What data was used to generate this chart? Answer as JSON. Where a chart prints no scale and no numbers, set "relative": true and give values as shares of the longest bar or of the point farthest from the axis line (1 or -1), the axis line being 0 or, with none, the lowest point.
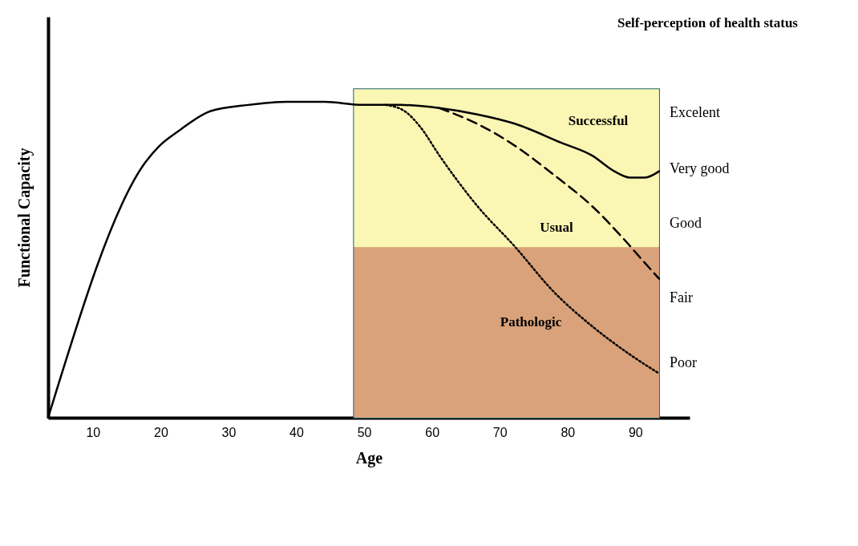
{
  "chart_data": {
    "type": "line",
    "relative": true,
    "xlabel": "Age",
    "ylabel": "Functional Capacity",
    "xlim": [
      3.4,
      98
    ],
    "xticks": [
      10,
      20,
      30,
      40,
      50,
      60,
      70,
      80,
      90
    ],
    "grid": false,
    "bands": [
      {
        "axis": "x",
        "from": 48.5,
        "to": 93.5,
        "color": "#faf6b4"
      },
      {
        "axis": "y",
        "from": 0.54,
        "to": 1.04,
        "color": "#faf6b4"
      },
      {
        "axis": "y",
        "from": 0,
        "to": 0.54,
        "color": "#d9a27a"
      }
    ],
    "series": [
      {
        "color": "#000000",
        "line_style": "solid",
        "x": [
          3.4,
          17.8,
          19.8,
          22.8,
          27.3,
          32.9,
          38.6,
          44.2,
          49.8,
          55.4,
          61.1,
          66.7,
          72.3,
          79.1,
          83.6,
          86.9,
          89.2,
          91.4,
          93.5
        ],
        "values": [
          0,
          0.81,
          0.86,
          0.91,
          0.97,
          0.99,
          1,
          1,
          0.99,
          0.99,
          0.98,
          0.96,
          0.93,
          0.87,
          0.83,
          0.78,
          0.76,
          0.76,
          0.78
        ]
      },
      {
        "color": "#000000",
        "line_style": "dashed",
        "x": [
          61.1,
          66.7,
          72.3,
          77.9,
          83.6,
          88.1,
          91.4,
          93.5
        ],
        "values": [
          0.98,
          0.93,
          0.86,
          0.77,
          0.67,
          0.57,
          0.49,
          0.44
        ]
      },
      {
        "color": "#000000",
        "line_style": "dotted",
        "x": [
          53.2,
          56,
          58.3,
          61.1,
          66.7,
          72.3,
          77.9,
          83.6,
          89.2,
          93.5
        ],
        "values": [
          0.99,
          0.97,
          0.92,
          0.83,
          0.67,
          0.54,
          0.4,
          0.29,
          0.2,
          0.14
        ]
      }
    ],
    "annotations": [
      "Successful",
      "Usual",
      "Pathologic",
      "Excelent",
      "Very good",
      "Good",
      "Fair",
      "Poor",
      "Self-perception of health status"
    ]
  }
}
